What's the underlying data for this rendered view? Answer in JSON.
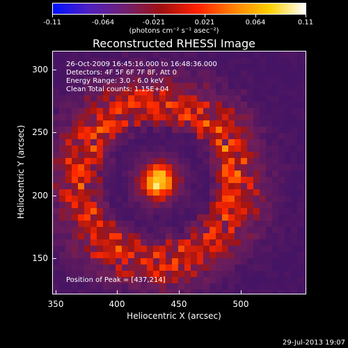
{
  "colorbar": {
    "ticks": [
      "-0.11",
      "-0.064",
      "-0.021",
      "0.021",
      "0.064",
      "0.11"
    ],
    "units": "(photons cm⁻² s⁻¹ asec⁻²)",
    "colors": [
      "#0010ff",
      "#5020c0",
      "#702070",
      "#a01010",
      "#ff2000",
      "#ff8000",
      "#ffd000",
      "#ffffff"
    ]
  },
  "title": "Reconstructed RHESSI Image",
  "info": {
    "time_range": "26-Oct-2009 16:45:16.000 to 16:48:36.000",
    "detectors": "Detectors: 4F 5F 6F 7F 8F, Att 0",
    "energy_range": "Energy Range: 3.0 - 6.0 keV",
    "algorithm": "Clean    Total counts: 1.15E+04"
  },
  "peak": "Position of Peak = [437,214]",
  "axes": {
    "xlabel": "Heliocentric X (arcsec)",
    "ylabel": "Heliocentric Y (arcsec)",
    "xticks": [
      "350",
      "400",
      "450",
      "500"
    ],
    "yticks": [
      "300",
      "250",
      "200",
      "150"
    ]
  },
  "footer": {
    "date": "29-Jul-2013 19:07"
  }
}
